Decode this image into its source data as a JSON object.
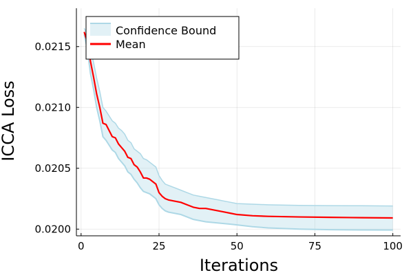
{
  "chart_data": {
    "type": "line",
    "xlabel": "Iterations",
    "ylabel": "ICCA Loss",
    "xlim": [
      -1.5,
      102.5
    ],
    "ylim": [
      0.019945,
      0.021815
    ],
    "xticks": [
      0,
      25,
      50,
      75,
      100
    ],
    "xtick_labels": [
      "0",
      "25",
      "50",
      "75",
      "100"
    ],
    "yticks": [
      0.02,
      0.0205,
      0.021,
      0.0215
    ],
    "ytick_labels": [
      "0.0200",
      "0.0205",
      "0.0210",
      "0.0215"
    ],
    "grid": true,
    "legend_position": "top-left",
    "series": [
      {
        "name": "Mean",
        "kind": "line",
        "color": "#ff0000",
        "x": [
          1,
          2,
          3,
          4,
          5,
          6,
          7,
          8,
          9,
          10,
          11,
          12,
          13,
          14,
          15,
          16,
          17,
          18,
          19,
          20,
          21,
          22,
          23,
          24,
          25,
          26,
          27,
          28,
          30,
          32,
          34,
          36,
          38,
          40,
          42,
          44,
          46,
          48,
          50,
          55,
          60,
          70,
          80,
          90,
          100
        ],
        "values": [
          0.02162,
          0.02154,
          0.02138,
          0.02125,
          0.02111,
          0.021,
          0.02087,
          0.02086,
          0.02081,
          0.02076,
          0.02075,
          0.0207,
          0.02067,
          0.02064,
          0.02059,
          0.02058,
          0.02053,
          0.02051,
          0.02047,
          0.02042,
          0.02042,
          0.02041,
          0.02039,
          0.02037,
          0.0203,
          0.02027,
          0.02025,
          0.02024,
          0.02023,
          0.02022,
          0.0202,
          0.02018,
          0.02017,
          0.02017,
          0.02016,
          0.02015,
          0.02014,
          0.02013,
          0.02012,
          0.02011,
          0.020105,
          0.0201,
          0.020097,
          0.020094,
          0.020092
        ]
      },
      {
        "name": "Confidence Bound",
        "kind": "band",
        "color": "#add8e6",
        "x": [
          1,
          2,
          3,
          4,
          5,
          6,
          7,
          8,
          9,
          10,
          11,
          12,
          13,
          14,
          15,
          16,
          17,
          18,
          19,
          20,
          21,
          22,
          23,
          24,
          25,
          26,
          27,
          28,
          30,
          32,
          34,
          36,
          38,
          40,
          42,
          44,
          46,
          48,
          50,
          55,
          60,
          70,
          80,
          90,
          100
        ],
        "lower": [
          0.0216,
          0.02148,
          0.02128,
          0.02115,
          0.021,
          0.02089,
          0.02076,
          0.02073,
          0.02069,
          0.02065,
          0.02063,
          0.02058,
          0.02055,
          0.02052,
          0.02047,
          0.02045,
          0.02041,
          0.02038,
          0.02034,
          0.02031,
          0.0203,
          0.02029,
          0.02027,
          0.02025,
          0.0202,
          0.02017,
          0.02015,
          0.02014,
          0.02013,
          0.02012,
          0.0201,
          0.02008,
          0.02007,
          0.02006,
          0.020055,
          0.02005,
          0.020045,
          0.02004,
          0.020035,
          0.02002,
          0.02001,
          0.02,
          0.019995,
          0.019993,
          0.019992
        ],
        "upper": [
          0.02165,
          0.0216,
          0.02149,
          0.02137,
          0.02124,
          0.02113,
          0.021,
          0.02097,
          0.02093,
          0.02089,
          0.02087,
          0.02083,
          0.02081,
          0.02078,
          0.02073,
          0.02071,
          0.02066,
          0.02064,
          0.02062,
          0.02058,
          0.02057,
          0.02055,
          0.02053,
          0.02051,
          0.02044,
          0.0204,
          0.02037,
          0.02036,
          0.02034,
          0.02032,
          0.0203,
          0.02028,
          0.02027,
          0.02026,
          0.02025,
          0.02024,
          0.02023,
          0.02022,
          0.02021,
          0.020205,
          0.0202,
          0.020195,
          0.020193,
          0.020192,
          0.02019
        ]
      }
    ]
  }
}
